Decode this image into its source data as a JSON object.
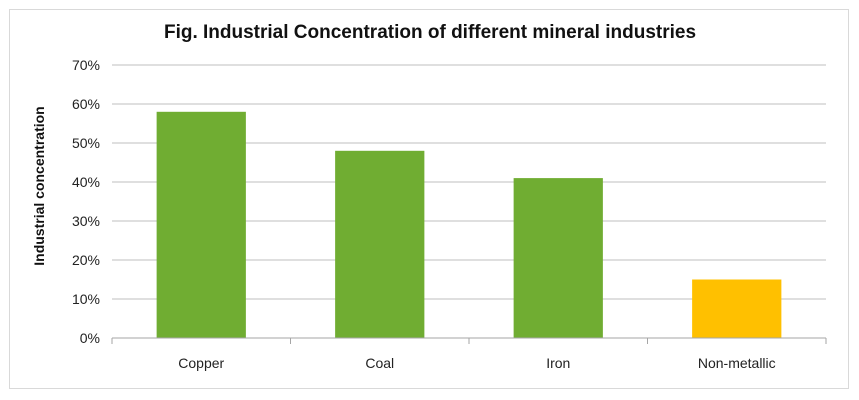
{
  "chart_data": {
    "type": "bar",
    "title": "Fig. Industrial Concentration of different mineral industries",
    "xlabel": "",
    "ylabel": "Industrial concentration",
    "categories": [
      "Copper",
      "Coal",
      "Iron",
      "Non-metallic"
    ],
    "values": [
      0.58,
      0.48,
      0.41,
      0.15
    ],
    "bar_colors": [
      "#70ad32",
      "#70ad32",
      "#70ad32",
      "#ffc000"
    ],
    "ylim": [
      0,
      0.7
    ],
    "yticks": [
      0,
      0.1,
      0.2,
      0.3,
      0.4,
      0.5,
      0.6,
      0.7
    ],
    "ytick_labels": [
      "0%",
      "10%",
      "20%",
      "30%",
      "40%",
      "50%",
      "60%",
      "70%"
    ],
    "grid": true,
    "legend": "none"
  }
}
